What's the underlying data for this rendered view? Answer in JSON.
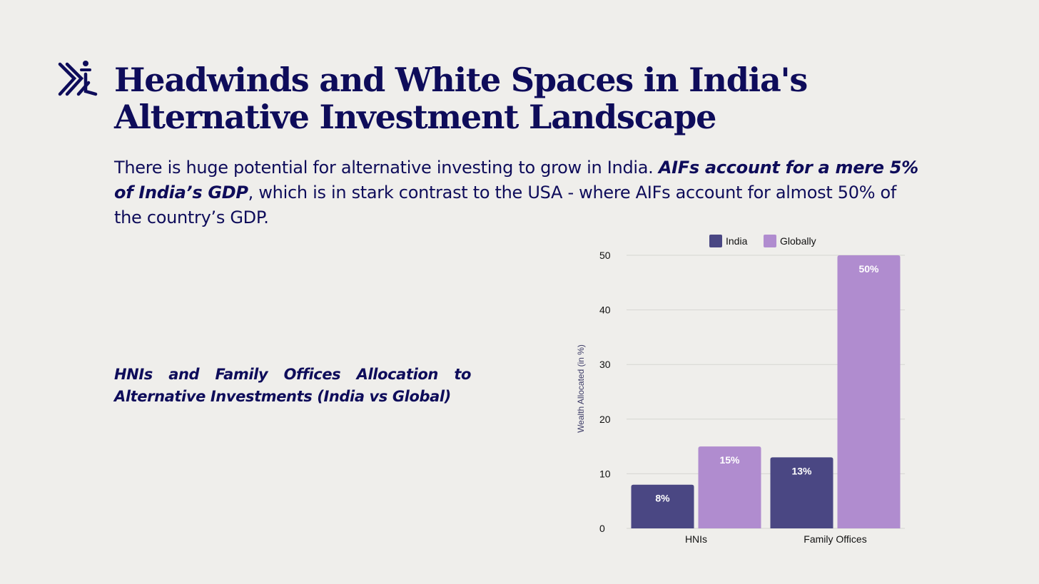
{
  "header": {
    "title": "Headwinds and White Spaces in India's Alternative Investment Landscape"
  },
  "intro": {
    "part1": "There is huge potential for alternative investing to grow in India. ",
    "emphasis": "AIFs account for a mere 5% of India’s GDP",
    "part2": ", which is in stark contrast to the USA - where AIFs account for almost 50% of the country’s GDP."
  },
  "caption": "HNIs and Family Offices Allocation to Alternative Investments (India vs Global)",
  "colors": {
    "text": "#0e0c5a",
    "india": "#4a4783",
    "globally": "#b08ccf"
  },
  "chart_data": {
    "type": "bar",
    "categories": [
      "HNIs",
      "Family Offices"
    ],
    "series": [
      {
        "name": "India",
        "values": [
          8,
          13
        ],
        "labels": [
          "8%",
          "13%"
        ],
        "color": "#4a4783"
      },
      {
        "name": "Globally",
        "values": [
          15,
          50
        ],
        "labels": [
          "15%",
          "50%"
        ],
        "color": "#b08ccf"
      }
    ],
    "ylabel": "Wealth Allocated (in %)",
    "ylim": [
      0,
      50
    ],
    "yticks": [
      0,
      10,
      20,
      30,
      40,
      50
    ],
    "grid": true,
    "legend": "top-center"
  }
}
